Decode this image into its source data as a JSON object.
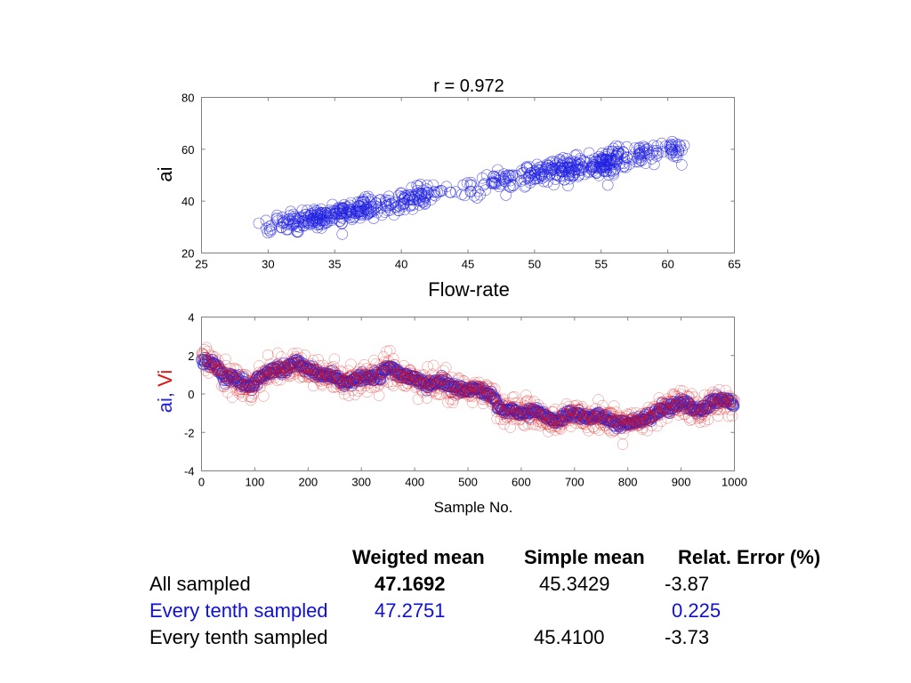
{
  "colors": {
    "ai": "#2020e0",
    "vi": "#e01010",
    "axis": "#808080",
    "highlight_row": "#1010d0"
  },
  "chart_data": [
    {
      "type": "scatter",
      "title": "r = 0.972",
      "xlabel": "Flow-rate",
      "ylabel": "ai",
      "xlim": [
        25,
        65
      ],
      "ylim": [
        20,
        80
      ],
      "xticks": [
        "25",
        "30",
        "35",
        "40",
        "45",
        "50",
        "55",
        "60",
        "65"
      ],
      "yticks": [
        "20",
        "40",
        "60",
        "80"
      ],
      "grid": false,
      "marker": "open-circle",
      "series": [
        {
          "name": "ai",
          "color": "#2020e0",
          "clusters": [
            {
              "x": 30.0,
              "y": 30.5,
              "n": 12,
              "sx": 0.5,
              "sy": 2.0
            },
            {
              "x": 32.0,
              "y": 31.5,
              "n": 40,
              "sx": 0.7,
              "sy": 2.0
            },
            {
              "x": 33.5,
              "y": 33.5,
              "n": 60,
              "sx": 0.7,
              "sy": 2.2
            },
            {
              "x": 35.0,
              "y": 35.0,
              "n": 40,
              "sx": 0.7,
              "sy": 2.0
            },
            {
              "x": 36.8,
              "y": 36.5,
              "n": 80,
              "sx": 0.8,
              "sy": 2.2
            },
            {
              "x": 39.0,
              "y": 38.5,
              "n": 40,
              "sx": 0.7,
              "sy": 2.0
            },
            {
              "x": 41.3,
              "y": 42.0,
              "n": 50,
              "sx": 0.6,
              "sy": 2.2
            },
            {
              "x": 43.0,
              "y": 43.5,
              "n": 15,
              "sx": 0.7,
              "sy": 1.5
            },
            {
              "x": 45.3,
              "y": 45.0,
              "n": 15,
              "sx": 0.4,
              "sy": 2.0
            },
            {
              "x": 47.3,
              "y": 47.5,
              "n": 35,
              "sx": 0.6,
              "sy": 1.8
            },
            {
              "x": 50.0,
              "y": 50.5,
              "n": 60,
              "sx": 0.8,
              "sy": 2.0
            },
            {
              "x": 52.5,
              "y": 52.0,
              "n": 70,
              "sx": 0.9,
              "sy": 2.2
            },
            {
              "x": 54.5,
              "y": 54.0,
              "n": 60,
              "sx": 0.8,
              "sy": 2.2
            },
            {
              "x": 55.8,
              "y": 55.5,
              "n": 60,
              "sx": 0.6,
              "sy": 2.4
            },
            {
              "x": 58.0,
              "y": 58.0,
              "n": 50,
              "sx": 0.9,
              "sy": 2.0
            },
            {
              "x": 60.5,
              "y": 60.0,
              "n": 25,
              "sx": 0.4,
              "sy": 2.0
            }
          ]
        }
      ]
    },
    {
      "type": "scatter",
      "title": "",
      "xlabel": "Sample No.",
      "ylabel_parts": [
        {
          "text": "ai",
          "color": "#2020e0"
        },
        {
          "text": ",",
          "color": "#2020e0"
        },
        {
          "text": " Vi",
          "color": "#e01010"
        }
      ],
      "xlim": [
        0,
        1000
      ],
      "ylim": [
        -4,
        4
      ],
      "xticks": [
        "0",
        "100",
        "200",
        "300",
        "400",
        "500",
        "600",
        "700",
        "800",
        "900",
        "1000"
      ],
      "yticks": [
        "-4",
        "-2",
        "0",
        "2",
        "4"
      ],
      "grid": false,
      "marker": "open-circle",
      "trend": {
        "x": [
          0,
          20,
          50,
          90,
          110,
          150,
          175,
          200,
          240,
          280,
          330,
          350,
          380,
          420,
          450,
          470,
          500,
          540,
          570,
          620,
          660,
          700,
          740,
          780,
          800,
          840,
          870,
          900,
          930,
          960,
          1000
        ],
        "y": [
          1.7,
          1.5,
          0.9,
          0.4,
          0.9,
          1.3,
          1.6,
          1.3,
          0.9,
          0.7,
          1.0,
          1.3,
          1.0,
          0.5,
          0.6,
          0.3,
          0.3,
          0.0,
          -0.9,
          -0.9,
          -1.3,
          -1.1,
          -1.2,
          -1.4,
          -1.6,
          -1.2,
          -0.8,
          -0.4,
          -0.9,
          -0.4,
          -0.4
        ]
      },
      "series": [
        {
          "name": "ai",
          "color": "#2020e0",
          "noise": 0.12,
          "n": 1000
        },
        {
          "name": "Vi",
          "color": "#e01010",
          "noise": 0.35,
          "n": 1000
        }
      ]
    }
  ],
  "summary_table": {
    "headers": [
      "",
      "Weigted mean",
      "Simple mean",
      "Relat. Error (%)"
    ],
    "rows": [
      {
        "label": "All sampled",
        "weighted": "47.1692",
        "simple": "45.3429",
        "error": "-3.87",
        "style": "normal"
      },
      {
        "label": "Every tenth sampled",
        "weighted": "47.2751",
        "simple": "",
        "error": "0.225",
        "style": "blue"
      },
      {
        "label": "Every tenth sampled",
        "weighted": "",
        "simple": "45.4100",
        "error": "-3.73",
        "style": "normal"
      }
    ]
  }
}
